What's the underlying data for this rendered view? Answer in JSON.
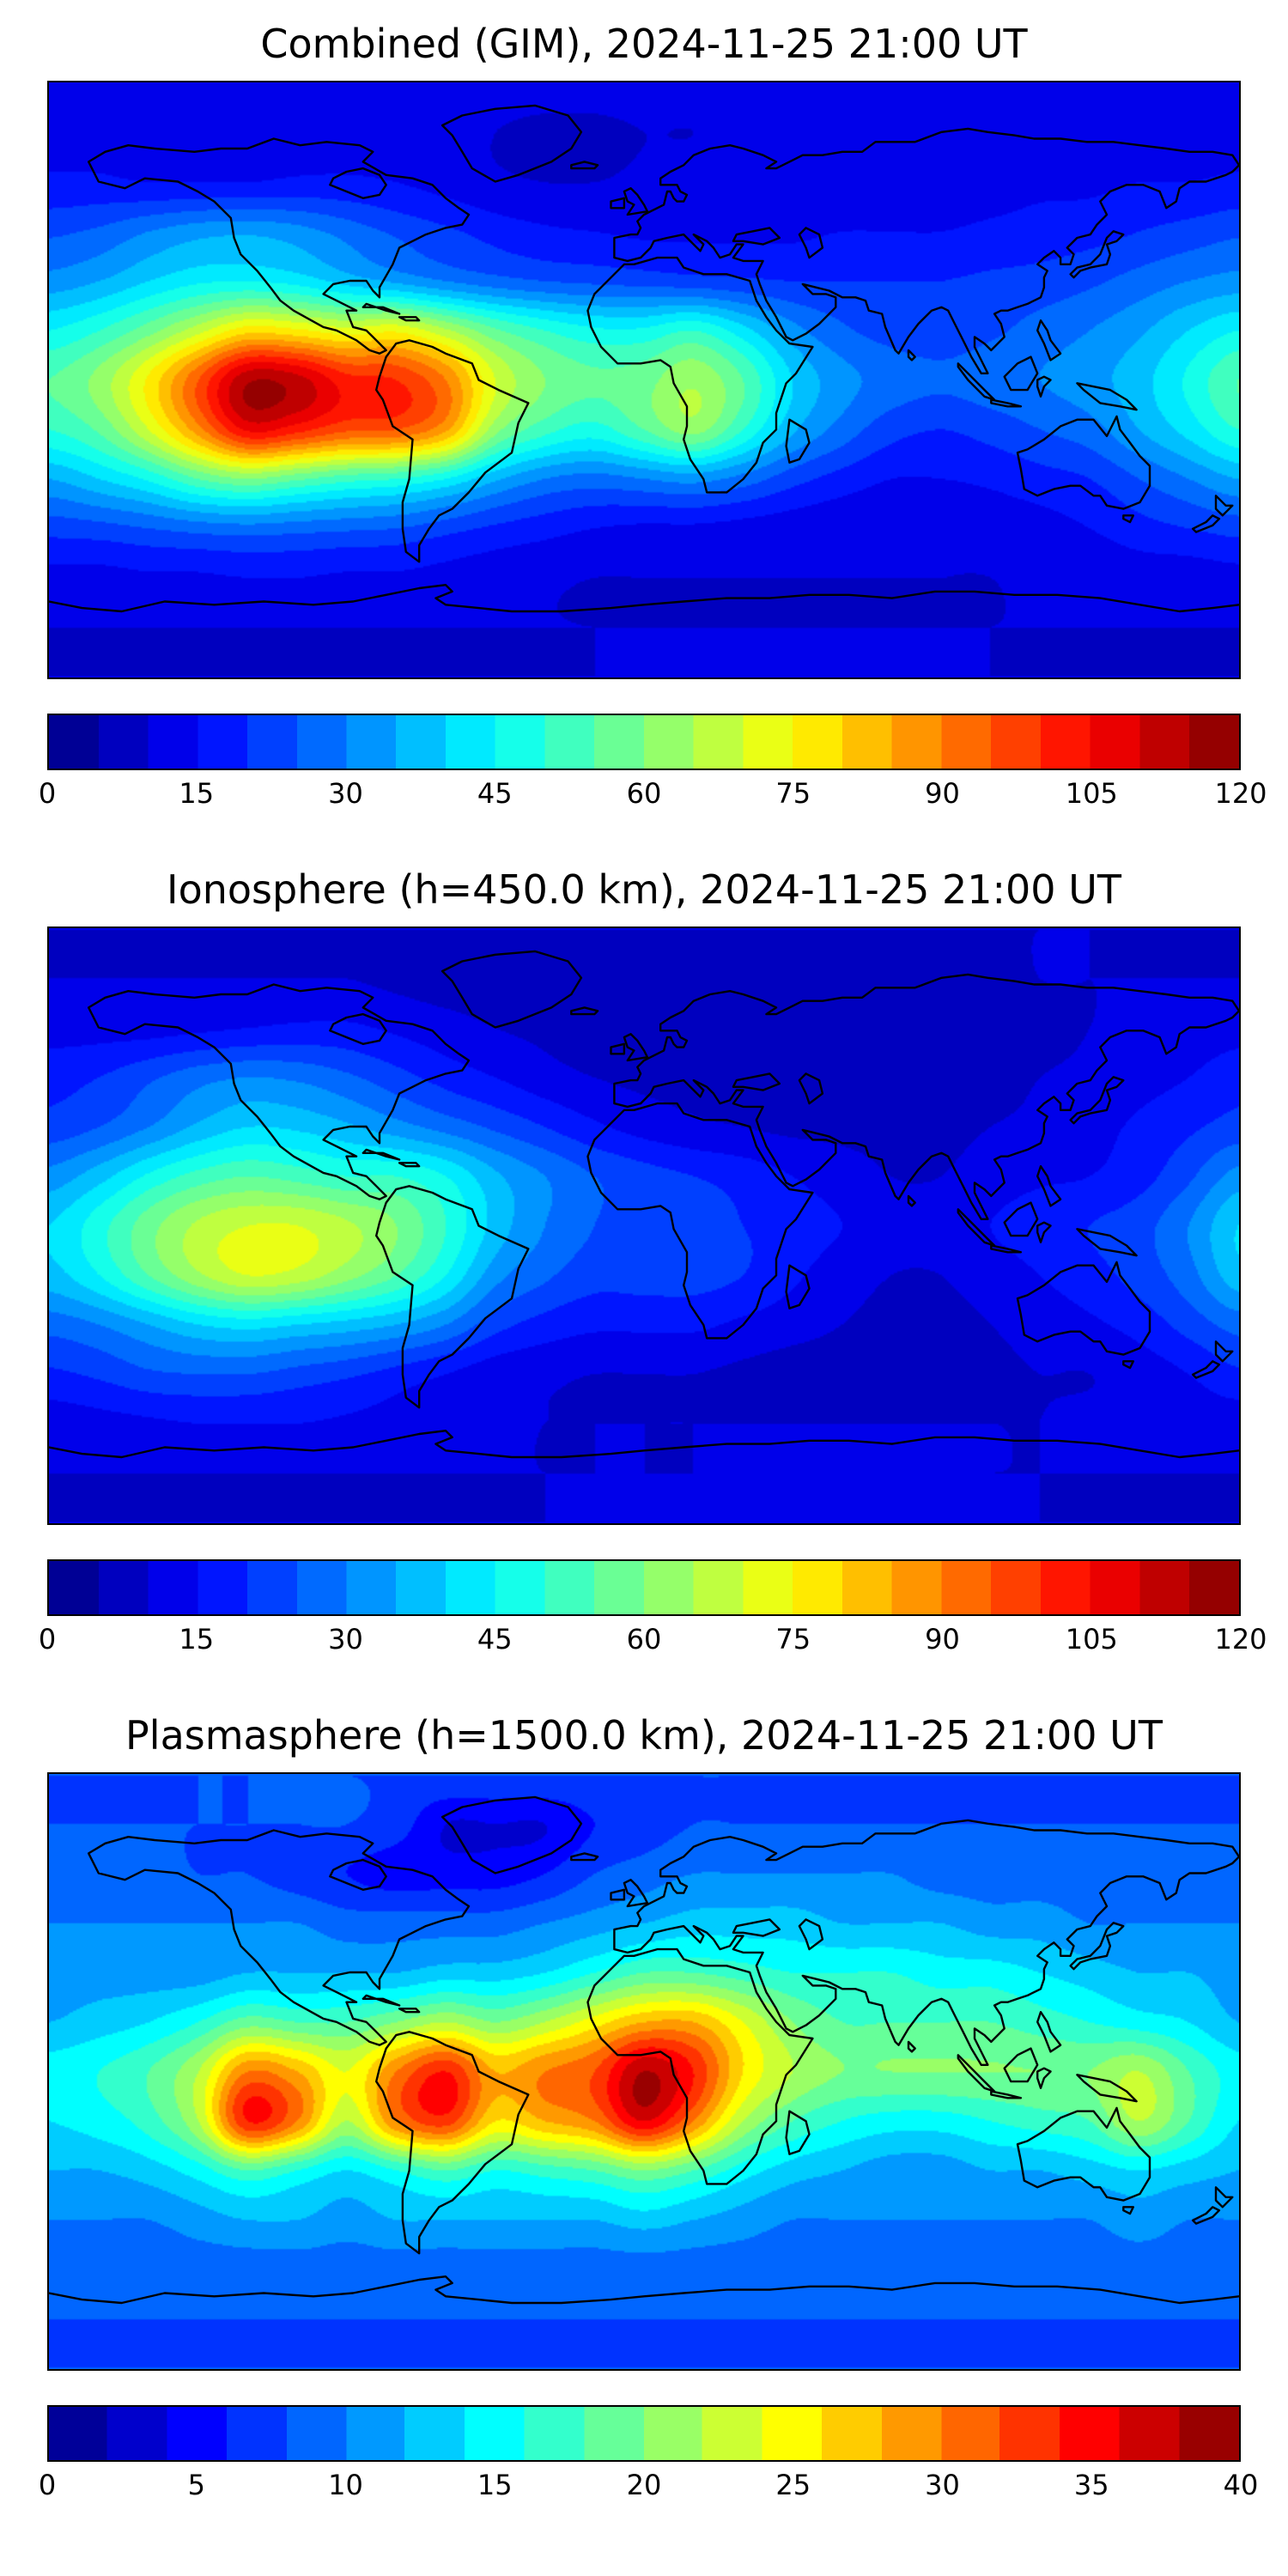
{
  "figure": {
    "background": "#ffffff",
    "colormap_name": "jet",
    "border_color": "#000000"
  },
  "chart_data": [
    {
      "type": "heatmap",
      "title": "Combined (GIM), 2024-11-25 21:00 UT",
      "projection": "equirectangular",
      "lon_range": [
        -180,
        180
      ],
      "lat_range": [
        -90,
        90
      ],
      "grid_step_deg": 15,
      "colormap": "jet",
      "vmin": 0,
      "vmax": 120,
      "contour_level_step": 5,
      "colorbar_ticks": [
        0,
        15,
        30,
        45,
        60,
        75,
        90,
        105,
        120
      ],
      "values": [
        [
          12,
          12,
          12,
          12,
          12,
          12,
          12,
          12,
          12,
          12,
          12,
          12,
          12,
          12,
          12,
          12,
          12,
          12,
          12,
          12,
          12,
          12,
          12,
          12,
          12
        ],
        [
          13,
          13,
          13,
          13,
          13,
          13,
          13,
          12,
          11,
          10,
          9,
          9,
          10,
          10,
          11,
          12,
          12,
          12,
          12,
          12,
          13,
          13,
          13,
          13,
          13
        ],
        [
          16,
          16,
          15,
          15,
          15,
          16,
          16,
          15,
          13,
          11,
          10,
          10,
          11,
          12,
          12,
          12,
          12,
          13,
          13,
          13,
          14,
          14,
          15,
          15,
          16
        ],
        [
          24,
          26,
          30,
          33,
          34,
          32,
          28,
          24,
          21,
          18,
          16,
          15,
          14,
          14,
          14,
          14,
          15,
          15,
          15,
          16,
          17,
          18,
          20,
          22,
          24
        ],
        [
          32,
          35,
          40,
          44,
          45,
          43,
          38,
          34,
          30,
          27,
          25,
          24,
          23,
          22,
          21,
          20,
          20,
          20,
          20,
          21,
          22,
          24,
          27,
          30,
          32
        ],
        [
          45,
          50,
          58,
          68,
          78,
          76,
          72,
          74,
          66,
          56,
          50,
          46,
          46,
          50,
          42,
          32,
          26,
          23,
          22,
          24,
          27,
          30,
          34,
          40,
          45
        ],
        [
          55,
          62,
          76,
          95,
          114,
          112,
          102,
          100,
          90,
          70,
          60,
          56,
          58,
          64,
          55,
          40,
          32,
          28,
          26,
          28,
          30,
          33,
          38,
          46,
          55
        ],
        [
          50,
          56,
          70,
          88,
          106,
          102,
          96,
          95,
          86,
          62,
          52,
          48,
          55,
          62,
          50,
          36,
          28,
          22,
          20,
          22,
          25,
          28,
          35,
          42,
          50
        ],
        [
          35,
          40,
          46,
          55,
          60,
          56,
          52,
          50,
          45,
          36,
          30,
          28,
          30,
          32,
          28,
          22,
          18,
          15,
          15,
          16,
          18,
          20,
          25,
          30,
          35
        ],
        [
          22,
          23,
          25,
          27,
          28,
          27,
          26,
          25,
          22,
          19,
          17,
          15,
          14,
          14,
          13,
          12,
          11,
          11,
          11,
          12,
          13,
          15,
          18,
          20,
          22
        ],
        [
          13,
          13,
          14,
          14,
          15,
          15,
          14,
          14,
          13,
          12,
          11,
          10,
          10,
          10,
          10,
          10,
          10,
          10,
          10,
          10,
          11,
          11,
          12,
          12,
          13
        ],
        [
          10,
          10,
          10,
          10,
          10,
          10,
          10,
          10,
          10,
          10,
          10,
          10,
          10,
          10,
          10,
          10,
          10,
          10,
          10,
          10,
          10,
          10,
          10,
          10,
          10
        ],
        [
          10,
          10,
          10,
          10,
          10,
          10,
          10,
          10,
          10,
          10,
          10,
          10,
          10,
          10,
          10,
          10,
          10,
          10,
          10,
          10,
          10,
          10,
          10,
          10,
          10
        ]
      ]
    },
    {
      "type": "heatmap",
      "title": "Ionosphere  (h=450.0 km), 2024-11-25 21:00 UT",
      "projection": "equirectangular",
      "lon_range": [
        -180,
        180
      ],
      "lat_range": [
        -90,
        90
      ],
      "grid_step_deg": 15,
      "colormap": "jet",
      "vmin": 0,
      "vmax": 120,
      "contour_level_step": 5,
      "colorbar_ticks": [
        0,
        15,
        30,
        45,
        60,
        75,
        90,
        105,
        120
      ],
      "values": [
        [
          10,
          10,
          10,
          10,
          10,
          10,
          10,
          10,
          10,
          10,
          10,
          10,
          10,
          10,
          10,
          10,
          10,
          10,
          10,
          10,
          10,
          10,
          10,
          10,
          10
        ],
        [
          10,
          10,
          10,
          10,
          10,
          10,
          10,
          9,
          8,
          8,
          8,
          8,
          8,
          8,
          9,
          9,
          9,
          9,
          9,
          9,
          10,
          10,
          10,
          10,
          10
        ],
        [
          13,
          13,
          13,
          14,
          15,
          16,
          16,
          14,
          12,
          10,
          9,
          8,
          8,
          8,
          8,
          8,
          8,
          8,
          8,
          9,
          9,
          10,
          11,
          12,
          13
        ],
        [
          18,
          20,
          24,
          28,
          30,
          29,
          26,
          22,
          18,
          15,
          12,
          10,
          9,
          9,
          9,
          8,
          8,
          8,
          8,
          9,
          10,
          11,
          13,
          15,
          18
        ],
        [
          22,
          25,
          30,
          36,
          40,
          39,
          36,
          32,
          28,
          24,
          20,
          16,
          13,
          11,
          10,
          9,
          9,
          9,
          9,
          10,
          11,
          13,
          16,
          19,
          22
        ],
        [
          32,
          38,
          46,
          52,
          55,
          53,
          50,
          50,
          45,
          36,
          30,
          25,
          22,
          20,
          18,
          15,
          12,
          10,
          10,
          12,
          14,
          15,
          18,
          24,
          32
        ],
        [
          40,
          48,
          58,
          66,
          70,
          70,
          66,
          60,
          50,
          38,
          30,
          25,
          22,
          22,
          20,
          18,
          15,
          12,
          12,
          15,
          18,
          20,
          23,
          30,
          40
        ],
        [
          38,
          45,
          55,
          64,
          70,
          68,
          62,
          55,
          45,
          32,
          26,
          22,
          22,
          22,
          20,
          16,
          12,
          10,
          10,
          12,
          15,
          18,
          22,
          28,
          38
        ],
        [
          27,
          30,
          35,
          40,
          42,
          40,
          38,
          35,
          30,
          22,
          18,
          16,
          16,
          16,
          14,
          12,
          10,
          9,
          9,
          10,
          12,
          14,
          17,
          22,
          27
        ],
        [
          19,
          21,
          24,
          25,
          25,
          23,
          21,
          18,
          15,
          12,
          11,
          10,
          10,
          10,
          9,
          8,
          8,
          8,
          8,
          9,
          10,
          10,
          12,
          15,
          19
        ],
        [
          12,
          13,
          14,
          15,
          15,
          15,
          14,
          13,
          12,
          11,
          10,
          10,
          10,
          10,
          10,
          10,
          10,
          10,
          10,
          10,
          10,
          11,
          11,
          12,
          12
        ],
        [
          10,
          10,
          10,
          10,
          10,
          10,
          10,
          10,
          10,
          10,
          10,
          10,
          10,
          10,
          10,
          10,
          10,
          10,
          10,
          10,
          10,
          10,
          10,
          10,
          10
        ],
        [
          10,
          10,
          10,
          10,
          10,
          10,
          10,
          10,
          10,
          10,
          10,
          10,
          10,
          10,
          10,
          10,
          10,
          10,
          10,
          10,
          10,
          10,
          10,
          10,
          10
        ]
      ]
    },
    {
      "type": "heatmap",
      "title": "Plasmasphere (h=1500.0 km), 2024-11-25 21:00 UT",
      "projection": "equirectangular",
      "lon_range": [
        -180,
        180
      ],
      "lat_range": [
        -90,
        90
      ],
      "grid_step_deg": 15,
      "colormap": "jet",
      "vmin": 0,
      "vmax": 40,
      "contour_level_step": 2,
      "colorbar_ticks": [
        0,
        5,
        10,
        15,
        20,
        25,
        30,
        35,
        40
      ],
      "values": [
        [
          8,
          8,
          8,
          8,
          8,
          8,
          8,
          8,
          8,
          8,
          8,
          8,
          8,
          8,
          8,
          8,
          8,
          8,
          8,
          8,
          8,
          8,
          8,
          8,
          8
        ],
        [
          8,
          8,
          8,
          8,
          8,
          8,
          8,
          7,
          4,
          4,
          4,
          6,
          7,
          8,
          8,
          8,
          8,
          8,
          8,
          8,
          8,
          8,
          8,
          8,
          8
        ],
        [
          9,
          9,
          9,
          8,
          8,
          7,
          6,
          5,
          5,
          5,
          6,
          8,
          9,
          10,
          10,
          10,
          10,
          10,
          9,
          9,
          9,
          9,
          9,
          9,
          9
        ],
        [
          10,
          10,
          10,
          10,
          10,
          10,
          9,
          9,
          9,
          9,
          10,
          11,
          12,
          13,
          13,
          13,
          12,
          12,
          12,
          11,
          11,
          10,
          10,
          10,
          10
        ],
        [
          11,
          11,
          11,
          11,
          12,
          12,
          12,
          12,
          13,
          13,
          14,
          16,
          18,
          18,
          17,
          16,
          16,
          16,
          15,
          15,
          14,
          13,
          12,
          12,
          11
        ],
        [
          12,
          13,
          14,
          16,
          19,
          18,
          18,
          20,
          22,
          20,
          22,
          25,
          28,
          28,
          24,
          20,
          18,
          18,
          18,
          18,
          17,
          16,
          15,
          14,
          12
        ],
        [
          15,
          16,
          18,
          22,
          30,
          28,
          24,
          30,
          34,
          28,
          30,
          32,
          38,
          34,
          26,
          22,
          20,
          20,
          20,
          20,
          20,
          20,
          22,
          18,
          15
        ],
        [
          14,
          15,
          17,
          22,
          34,
          30,
          22,
          30,
          33,
          26,
          28,
          30,
          36,
          30,
          22,
          18,
          16,
          15,
          15,
          16,
          17,
          18,
          22,
          18,
          14
        ],
        [
          12,
          12,
          13,
          15,
          18,
          16,
          14,
          16,
          18,
          16,
          17,
          18,
          20,
          18,
          15,
          13,
          12,
          11,
          11,
          12,
          12,
          13,
          14,
          13,
          12
        ],
        [
          10,
          10,
          10,
          11,
          12,
          12,
          11,
          12,
          12,
          12,
          12,
          12,
          13,
          12,
          11,
          10,
          10,
          10,
          10,
          10,
          10,
          10,
          11,
          10,
          10
        ],
        [
          9,
          9,
          9,
          9,
          9,
          9,
          9,
          9,
          9,
          9,
          9,
          9,
          9,
          9,
          9,
          9,
          9,
          9,
          9,
          9,
          9,
          9,
          9,
          9,
          9
        ],
        [
          8,
          8,
          8,
          8,
          8,
          8,
          8,
          8,
          8,
          8,
          8,
          8,
          8,
          8,
          8,
          8,
          8,
          8,
          8,
          8,
          8,
          8,
          8,
          8,
          8
        ],
        [
          8,
          8,
          8,
          8,
          8,
          8,
          8,
          8,
          8,
          8,
          8,
          8,
          8,
          8,
          8,
          8,
          8,
          8,
          8,
          8,
          8,
          8,
          8,
          8,
          8
        ]
      ]
    }
  ]
}
